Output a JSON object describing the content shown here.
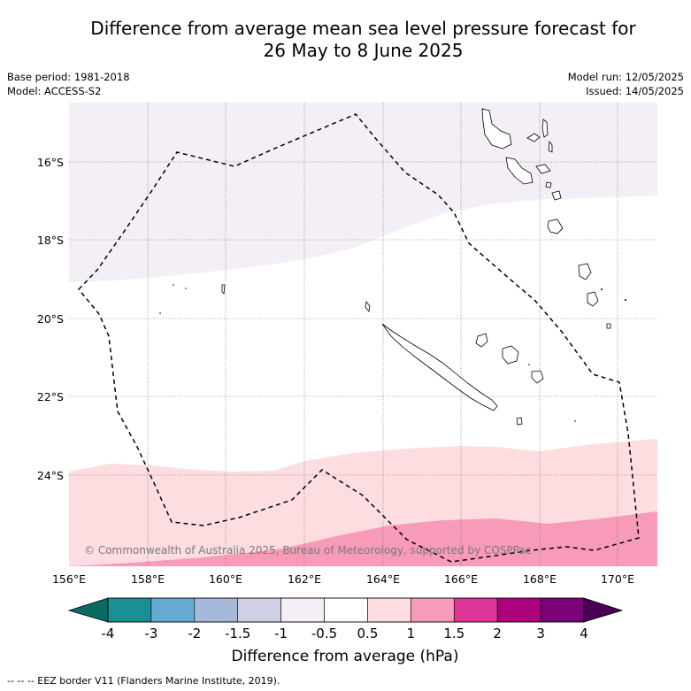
{
  "title_line1": "Difference from average mean sea level pressure forecast for",
  "title_line2": "26 May to 8 June 2025",
  "base_period": "Base period: 1981-2018",
  "model": "Model: ACCESS-S2",
  "model_run": "Model run: 12/05/2025",
  "issued": "Issued: 14/05/2025",
  "copyright": "© Commonwealth of Australia 2025, Bureau of Meteorology, supported by COSPPac",
  "lat_ticks": [
    "16°S",
    "18°S",
    "20°S",
    "22°S",
    "24°S"
  ],
  "lon_ticks": [
    "156°E",
    "158°E",
    "160°E",
    "162°E",
    "164°E",
    "166°E",
    "168°E",
    "170°E"
  ],
  "colorbar": {
    "ticks": [
      "-4",
      "-3",
      "-2",
      "-1.5",
      "-1",
      "-0.5",
      "0.5",
      "1",
      "1.5",
      "2",
      "3",
      "4"
    ],
    "colors": [
      "#1a8f96",
      "#66aad2",
      "#a6b9db",
      "#cfd0e6",
      "#f4eef7",
      "#ffffff",
      "#fddddf",
      "#f79bb8",
      "#dd3497",
      "#ae017e",
      "#7a0177"
    ],
    "under_color": "#0a6b62",
    "over_color": "#4a0055",
    "label": "Difference from average (hPa)"
  },
  "legend_footer": "--  --  -- EEZ border V11 (Flanders Marine Institute, 2019).",
  "map_colors": {
    "light_purple": "#f4eef7",
    "light_pink": "#fddddf",
    "pink": "#f79bb8"
  }
}
